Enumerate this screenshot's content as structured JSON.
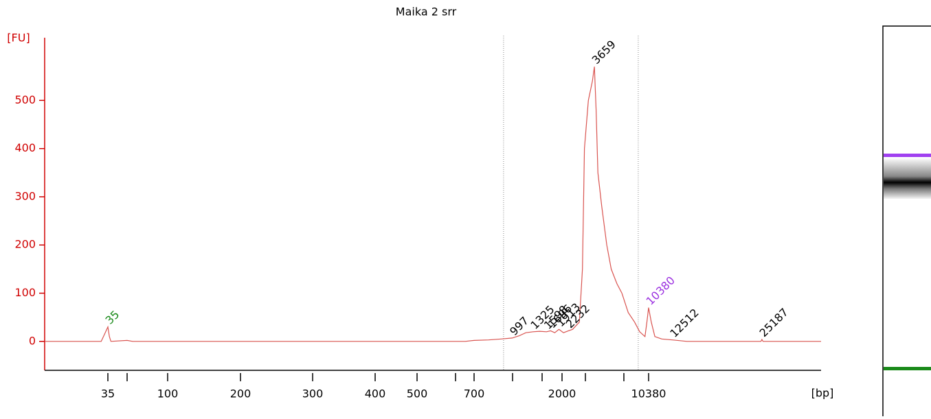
{
  "chart_data": {
    "type": "line",
    "title": "Maika 2 srr",
    "y_label": "[FU]",
    "x_label": "[bp]",
    "ylim": [
      -60,
      630
    ],
    "yticks": [
      0,
      100,
      200,
      300,
      400,
      500
    ],
    "xlim": [
      20,
      40000
    ],
    "xticks": [
      35,
      100,
      200,
      300,
      400,
      500,
      700,
      2000,
      10380
    ],
    "xticks_minor": [
      50,
      600,
      1000,
      1500,
      3000,
      7000
    ],
    "region": [
      920,
      8800
    ],
    "trace": {
      "color": "#d9534f",
      "bp": [
        20,
        33,
        34,
        35,
        36,
        37,
        50,
        55,
        650,
        700,
        800,
        900,
        997,
        1100,
        1200,
        1325,
        1450,
        1598,
        1696,
        1800,
        1913,
        2050,
        2232,
        2400,
        2700,
        2850,
        2950,
        3200,
        3500,
        3659,
        3800,
        3950,
        4300,
        4800,
        5300,
        6000,
        6700,
        7500,
        8300,
        9000,
        9800,
        10100,
        10380,
        10600,
        10900,
        11500,
        12512,
        14000,
        25000,
        25187,
        25400,
        40000
      ],
      "fu": [
        0,
        0,
        15,
        30,
        10,
        0,
        2,
        0,
        0,
        2,
        3,
        5,
        7,
        12,
        18,
        20,
        21,
        20,
        22,
        18,
        25,
        18,
        22,
        25,
        40,
        150,
        400,
        500,
        540,
        570,
        480,
        350,
        280,
        200,
        150,
        120,
        100,
        60,
        40,
        20,
        10,
        40,
        70,
        40,
        10,
        5,
        3,
        0,
        0,
        4,
        0,
        0
      ]
    },
    "peaks": {
      "x": [
        35,
        997,
        1325,
        1598,
        1696,
        1913,
        2232,
        3659,
        10380,
        12512,
        25187
      ],
      "colors": [
        "#1a8a1a",
        "#000000",
        "#000000",
        "#000000",
        "#000000",
        "#000000",
        "#000000",
        "#000000",
        "#9b30e0",
        "#000000",
        "#000000"
      ]
    }
  }
}
